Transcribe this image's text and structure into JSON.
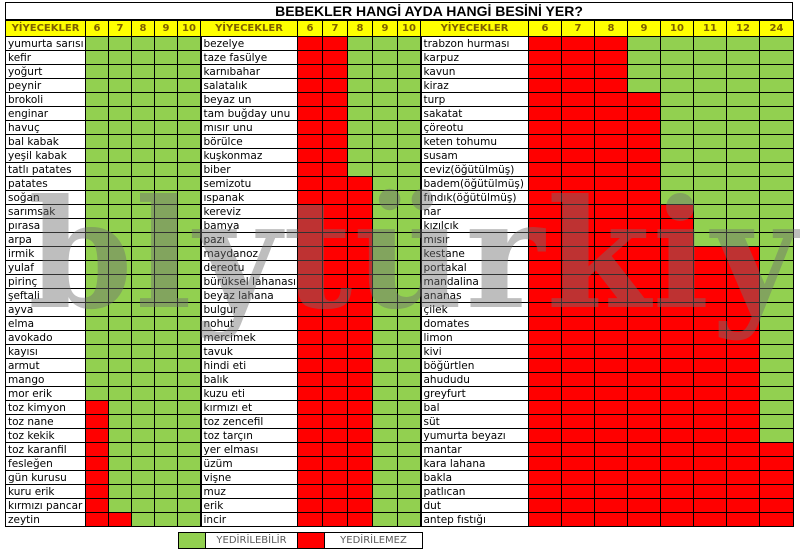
{
  "title": "BEBEKLER HANGİ AYDA HANGİ BESİNİ YER?",
  "watermark": "blytürkiye",
  "colors": {
    "edible": "#92d050",
    "not_edible": "#ff0000",
    "header": "#ffff00"
  },
  "legend": {
    "edible_label": "YEDİRİLEBİLİR",
    "not_edible_label": "YEDİRİLEMEZ"
  },
  "sections": [
    {
      "header": "YİYECEKLER",
      "months": [
        "6",
        "7",
        "8",
        "9",
        "10"
      ],
      "items": [
        {
          "name": "yumurta sarısı",
          "red_months": 0
        },
        {
          "name": "kefir",
          "red_months": 0
        },
        {
          "name": "yoğurt",
          "red_months": 0
        },
        {
          "name": "peynir",
          "red_months": 0
        },
        {
          "name": "brokoli",
          "red_months": 0
        },
        {
          "name": "enginar",
          "red_months": 0
        },
        {
          "name": "havuç",
          "red_months": 0
        },
        {
          "name": "bal kabak",
          "red_months": 0
        },
        {
          "name": "yeşil kabak",
          "red_months": 0
        },
        {
          "name": "tatlı patates",
          "red_months": 0
        },
        {
          "name": "patates",
          "red_months": 0
        },
        {
          "name": "soğan",
          "red_months": 0
        },
        {
          "name": "sarımsak",
          "red_months": 0
        },
        {
          "name": "pırasa",
          "red_months": 0
        },
        {
          "name": "arpa",
          "red_months": 0
        },
        {
          "name": "irmik",
          "red_months": 0
        },
        {
          "name": "yulaf",
          "red_months": 0
        },
        {
          "name": "pirinç",
          "red_months": 0
        },
        {
          "name": "şeftali",
          "red_months": 0
        },
        {
          "name": "ayva",
          "red_months": 0
        },
        {
          "name": "elma",
          "red_months": 0
        },
        {
          "name": "avokado",
          "red_months": 0
        },
        {
          "name": "kayısı",
          "red_months": 0
        },
        {
          "name": "armut",
          "red_months": 0
        },
        {
          "name": "mango",
          "red_months": 0
        },
        {
          "name": "mor erik",
          "red_months": 0
        },
        {
          "name": "toz kimyon",
          "red_months": 1
        },
        {
          "name": "toz nane",
          "red_months": 1
        },
        {
          "name": "toz kekik",
          "red_months": 1
        },
        {
          "name": "toz karanfil",
          "red_months": 1
        },
        {
          "name": "fesleğen",
          "red_months": 1
        },
        {
          "name": "gün kurusu",
          "red_months": 1
        },
        {
          "name": "kuru erik",
          "red_months": 1
        },
        {
          "name": "kırmızı pancar",
          "red_months": 1
        },
        {
          "name": "zeytin",
          "red_months": 2
        }
      ]
    },
    {
      "header": "YİYECEKLER",
      "months": [
        "6",
        "7",
        "8",
        "9",
        "10"
      ],
      "items": [
        {
          "name": "bezelye",
          "red_months": 2
        },
        {
          "name": "taze fasülye",
          "red_months": 2
        },
        {
          "name": "karnıbahar",
          "red_months": 2
        },
        {
          "name": "salatalık",
          "red_months": 2
        },
        {
          "name": "beyaz un",
          "red_months": 2
        },
        {
          "name": "tam buğday unu",
          "red_months": 2
        },
        {
          "name": "mısır unu",
          "red_months": 2
        },
        {
          "name": "börülce",
          "red_months": 2
        },
        {
          "name": "kuşkonmaz",
          "red_months": 2
        },
        {
          "name": " biber",
          "red_months": 2
        },
        {
          "name": "semizotu",
          "red_months": 3
        },
        {
          "name": "ıspanak",
          "red_months": 3
        },
        {
          "name": "kereviz",
          "red_months": 3
        },
        {
          "name": "bamya",
          "red_months": 3
        },
        {
          "name": "pazı",
          "red_months": 3
        },
        {
          "name": "maydanoz",
          "red_months": 3
        },
        {
          "name": "dereotu",
          "red_months": 3
        },
        {
          "name": "bürüksel lahanası",
          "red_months": 3
        },
        {
          "name": "beyaz lahana",
          "red_months": 3
        },
        {
          "name": "bulgur",
          "red_months": 3
        },
        {
          "name": "nohut",
          "red_months": 3
        },
        {
          "name": "mercimek",
          "red_months": 3
        },
        {
          "name": "tavuk",
          "red_months": 3
        },
        {
          "name": "hindi eti",
          "red_months": 3
        },
        {
          "name": "balık",
          "red_months": 3
        },
        {
          "name": "kuzu eti",
          "red_months": 3
        },
        {
          "name": "kırmızı et",
          "red_months": 3
        },
        {
          "name": "toz zencefil",
          "red_months": 3
        },
        {
          "name": "toz tarçın",
          "red_months": 3
        },
        {
          "name": "yer elması",
          "red_months": 3
        },
        {
          "name": "üzüm",
          "red_months": 3
        },
        {
          "name": "vişne",
          "red_months": 3
        },
        {
          "name": "muz",
          "red_months": 3
        },
        {
          "name": "erik",
          "red_months": 3
        },
        {
          "name": "incir",
          "red_months": 3
        }
      ]
    },
    {
      "header": "YİYECEKLER",
      "months": [
        "6",
        "7",
        "8",
        "9",
        "10",
        "11",
        "12",
        "24"
      ],
      "items": [
        {
          "name": "trabzon hurması",
          "red_months": 3
        },
        {
          "name": "karpuz",
          "red_months": 3
        },
        {
          "name": "kavun",
          "red_months": 3
        },
        {
          "name": "kiraz",
          "red_months": 3
        },
        {
          "name": "turp",
          "red_months": 4
        },
        {
          "name": "sakatat",
          "red_months": 4
        },
        {
          "name": "çöreotu",
          "red_months": 4
        },
        {
          "name": "keten tohumu",
          "red_months": 4
        },
        {
          "name": "susam",
          "red_months": 4
        },
        {
          "name": "ceviz(öğütülmüş)",
          "red_months": 4
        },
        {
          "name": "badem(öğütülmüş)",
          "red_months": 4
        },
        {
          "name": "fındık(öğütülmüş)",
          "red_months": 4
        },
        {
          "name": "nar",
          "red_months": 5
        },
        {
          "name": "kızılcık",
          "red_months": 5
        },
        {
          "name": "mısır",
          "red_months": 5
        },
        {
          "name": "kestane",
          "red_months": 7
        },
        {
          "name": "portakal",
          "red_months": 7
        },
        {
          "name": "mandalina",
          "red_months": 7
        },
        {
          "name": "ananas",
          "red_months": 7
        },
        {
          "name": "çilek",
          "red_months": 7
        },
        {
          "name": "domates",
          "red_months": 7
        },
        {
          "name": "limon",
          "red_months": 7
        },
        {
          "name": "kivi",
          "red_months": 7
        },
        {
          "name": "böğürtlen",
          "red_months": 7
        },
        {
          "name": "ahududu",
          "red_months": 7
        },
        {
          "name": "greyfurt",
          "red_months": 7
        },
        {
          "name": "bal",
          "red_months": 7
        },
        {
          "name": "süt",
          "red_months": 7
        },
        {
          "name": "yumurta beyazı",
          "red_months": 7
        },
        {
          "name": "mantar",
          "red_months": 8
        },
        {
          "name": "kara lahana",
          "red_months": 8
        },
        {
          "name": "bakla",
          "red_months": 8
        },
        {
          "name": "patlıcan",
          "red_months": 8
        },
        {
          "name": "dut",
          "red_months": 8
        },
        {
          "name": "antep fıstığı",
          "red_months": 8
        }
      ]
    }
  ]
}
